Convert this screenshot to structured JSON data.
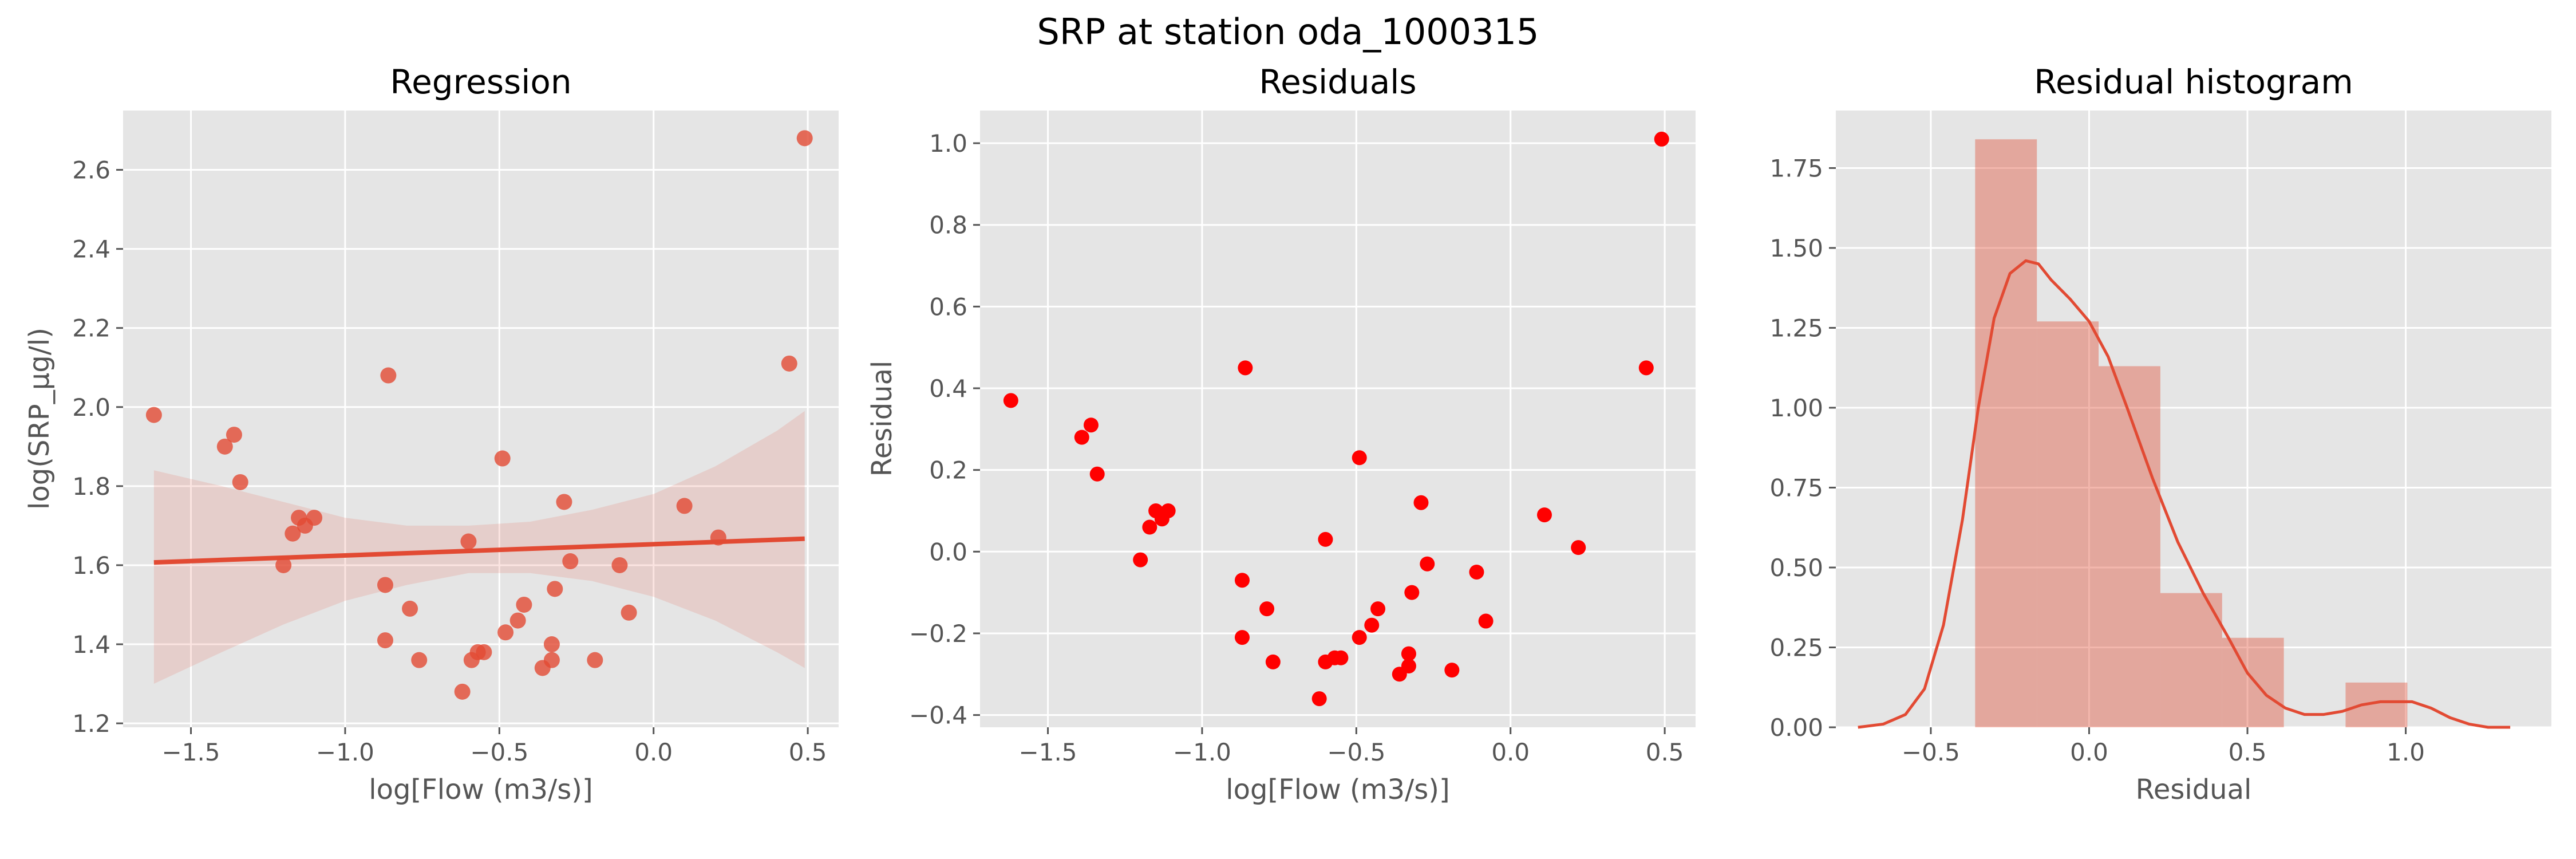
{
  "suptitle": "SRP at station oda_1000315",
  "chart_data": [
    {
      "type": "scatter",
      "title": "Regression",
      "xlabel": "log[Flow (m3/s)]",
      "ylabel": "log(SRP_µg/l)",
      "xlim": [
        -1.72,
        0.6
      ],
      "ylim": [
        1.19,
        2.75
      ],
      "xticks": [
        -1.5,
        -1.0,
        -0.5,
        0.0,
        0.5
      ],
      "xtick_labels": [
        "−1.5",
        "−1.0",
        "−0.5",
        "0.0",
        "0.5"
      ],
      "yticks": [
        1.2,
        1.4,
        1.6,
        1.8,
        2.0,
        2.2,
        2.4,
        2.6
      ],
      "ytick_labels": [
        "1.2",
        "1.4",
        "1.6",
        "1.8",
        "2.0",
        "2.2",
        "2.4",
        "2.6"
      ],
      "grid": true,
      "point_color": "#E24A33",
      "points": [
        {
          "x": -1.62,
          "y": 1.98
        },
        {
          "x": -1.39,
          "y": 1.9
        },
        {
          "x": -1.36,
          "y": 1.93
        },
        {
          "x": -1.34,
          "y": 1.81
        },
        {
          "x": -1.2,
          "y": 1.6
        },
        {
          "x": -1.17,
          "y": 1.68
        },
        {
          "x": -1.15,
          "y": 1.72
        },
        {
          "x": -1.13,
          "y": 1.7
        },
        {
          "x": -1.1,
          "y": 1.72
        },
        {
          "x": -0.87,
          "y": 1.55
        },
        {
          "x": -0.86,
          "y": 2.08
        },
        {
          "x": -0.87,
          "y": 1.41
        },
        {
          "x": -0.79,
          "y": 1.49
        },
        {
          "x": -0.76,
          "y": 1.36
        },
        {
          "x": -0.62,
          "y": 1.28
        },
        {
          "x": -0.6,
          "y": 1.66
        },
        {
          "x": -0.59,
          "y": 1.36
        },
        {
          "x": -0.57,
          "y": 1.38
        },
        {
          "x": -0.55,
          "y": 1.38
        },
        {
          "x": -0.49,
          "y": 1.87
        },
        {
          "x": -0.48,
          "y": 1.43
        },
        {
          "x": -0.44,
          "y": 1.46
        },
        {
          "x": -0.42,
          "y": 1.5
        },
        {
          "x": -0.36,
          "y": 1.34
        },
        {
          "x": -0.33,
          "y": 1.36
        },
        {
          "x": -0.33,
          "y": 1.4
        },
        {
          "x": -0.32,
          "y": 1.54
        },
        {
          "x": -0.29,
          "y": 1.76
        },
        {
          "x": -0.27,
          "y": 1.61
        },
        {
          "x": -0.19,
          "y": 1.36
        },
        {
          "x": -0.11,
          "y": 1.6
        },
        {
          "x": -0.08,
          "y": 1.48
        },
        {
          "x": 0.1,
          "y": 1.75
        },
        {
          "x": 0.21,
          "y": 1.67
        },
        {
          "x": 0.44,
          "y": 2.11
        },
        {
          "x": 0.49,
          "y": 2.68
        }
      ],
      "fit_line": {
        "x": [
          -1.62,
          0.49
        ],
        "y": [
          1.607,
          1.667
        ],
        "color": "#E24A33"
      },
      "confidence_band": {
        "x": [
          -1.62,
          -1.4,
          -1.2,
          -1.0,
          -0.8,
          -0.6,
          -0.4,
          -0.2,
          0.0,
          0.2,
          0.4,
          0.49
        ],
        "upper": [
          1.84,
          1.8,
          1.76,
          1.72,
          1.7,
          1.7,
          1.71,
          1.74,
          1.78,
          1.85,
          1.94,
          1.99
        ],
        "lower": [
          1.3,
          1.38,
          1.45,
          1.51,
          1.55,
          1.58,
          1.58,
          1.56,
          1.52,
          1.46,
          1.38,
          1.34
        ],
        "color": "#E24A33"
      }
    },
    {
      "type": "scatter",
      "title": "Residuals",
      "xlabel": "log[Flow (m3/s)]",
      "ylabel": "Residual",
      "xlim": [
        -1.72,
        0.6
      ],
      "ylim": [
        -0.43,
        1.08
      ],
      "xticks": [
        -1.5,
        -1.0,
        -0.5,
        0.0,
        0.5
      ],
      "xtick_labels": [
        "−1.5",
        "−1.0",
        "−0.5",
        "0.0",
        "0.5"
      ],
      "yticks": [
        -0.4,
        -0.2,
        0.0,
        0.2,
        0.4,
        0.6,
        0.8,
        1.0
      ],
      "ytick_labels": [
        "−0.4",
        "−0.2",
        "0.0",
        "0.2",
        "0.4",
        "0.6",
        "0.8",
        "1.0"
      ],
      "grid": true,
      "point_color": "#FF0000",
      "points": [
        {
          "x": -1.62,
          "y": 0.37
        },
        {
          "x": -1.39,
          "y": 0.28
        },
        {
          "x": -1.36,
          "y": 0.31
        },
        {
          "x": -1.34,
          "y": 0.19
        },
        {
          "x": -1.2,
          "y": -0.02
        },
        {
          "x": -1.17,
          "y": 0.06
        },
        {
          "x": -1.15,
          "y": 0.1
        },
        {
          "x": -1.13,
          "y": 0.08
        },
        {
          "x": -1.11,
          "y": 0.1
        },
        {
          "x": -0.87,
          "y": -0.07
        },
        {
          "x": -0.86,
          "y": 0.45
        },
        {
          "x": -0.87,
          "y": -0.21
        },
        {
          "x": -0.79,
          "y": -0.14
        },
        {
          "x": -0.77,
          "y": -0.27
        },
        {
          "x": -0.62,
          "y": -0.36
        },
        {
          "x": -0.6,
          "y": 0.03
        },
        {
          "x": -0.6,
          "y": -0.27
        },
        {
          "x": -0.57,
          "y": -0.26
        },
        {
          "x": -0.55,
          "y": -0.26
        },
        {
          "x": -0.49,
          "y": 0.23
        },
        {
          "x": -0.49,
          "y": -0.21
        },
        {
          "x": -0.45,
          "y": -0.18
        },
        {
          "x": -0.43,
          "y": -0.14
        },
        {
          "x": -0.36,
          "y": -0.3
        },
        {
          "x": -0.33,
          "y": -0.28
        },
        {
          "x": -0.33,
          "y": -0.25
        },
        {
          "x": -0.32,
          "y": -0.1
        },
        {
          "x": -0.29,
          "y": 0.12
        },
        {
          "x": -0.27,
          "y": -0.03
        },
        {
          "x": -0.19,
          "y": -0.29
        },
        {
          "x": -0.11,
          "y": -0.05
        },
        {
          "x": -0.08,
          "y": -0.17
        },
        {
          "x": 0.11,
          "y": 0.09
        },
        {
          "x": 0.22,
          "y": 0.01
        },
        {
          "x": 0.44,
          "y": 0.45
        },
        {
          "x": 0.49,
          "y": 1.01
        }
      ]
    },
    {
      "type": "histogram",
      "title": "Residual histogram",
      "xlabel": "Residual",
      "ylabel": "",
      "xlim": [
        -0.8,
        1.46
      ],
      "ylim": [
        0,
        1.93
      ],
      "xticks": [
        -0.5,
        0.0,
        0.5,
        1.0
      ],
      "xtick_labels": [
        "−0.5",
        "0.0",
        "0.5",
        "1.0"
      ],
      "yticks": [
        0.0,
        0.25,
        0.5,
        0.75,
        1.0,
        1.25,
        1.5,
        1.75
      ],
      "ytick_labels": [
        "0.00",
        "0.25",
        "0.50",
        "0.75",
        "1.00",
        "1.25",
        "1.50",
        "1.75"
      ],
      "grid": true,
      "bar_color": "#E24A33",
      "bins": [
        {
          "x0": -0.36,
          "x1": -0.165,
          "value": 1.84
        },
        {
          "x0": -0.165,
          "x1": 0.03,
          "value": 1.27
        },
        {
          "x0": 0.03,
          "x1": 0.225,
          "value": 1.13
        },
        {
          "x0": 0.225,
          "x1": 0.42,
          "value": 0.42
        },
        {
          "x0": 0.42,
          "x1": 0.615,
          "value": 0.28
        },
        {
          "x0": 0.615,
          "x1": 0.81,
          "value": 0.0
        },
        {
          "x0": 0.81,
          "x1": 1.005,
          "value": 0.14
        }
      ],
      "kde": {
        "color": "#E24A33",
        "x": [
          -0.73,
          -0.65,
          -0.58,
          -0.52,
          -0.46,
          -0.4,
          -0.35,
          -0.3,
          -0.25,
          -0.2,
          -0.16,
          -0.12,
          -0.06,
          0.0,
          0.06,
          0.12,
          0.2,
          0.28,
          0.36,
          0.44,
          0.5,
          0.56,
          0.62,
          0.68,
          0.74,
          0.8,
          0.86,
          0.92,
          0.98,
          1.02,
          1.08,
          1.14,
          1.2,
          1.26,
          1.33
        ],
        "y": [
          0.0,
          0.01,
          0.04,
          0.12,
          0.32,
          0.65,
          1.0,
          1.28,
          1.42,
          1.46,
          1.45,
          1.4,
          1.34,
          1.27,
          1.16,
          1.0,
          0.78,
          0.58,
          0.42,
          0.28,
          0.17,
          0.1,
          0.06,
          0.04,
          0.04,
          0.05,
          0.07,
          0.08,
          0.08,
          0.08,
          0.06,
          0.03,
          0.01,
          0.0,
          0.0
        ]
      }
    }
  ]
}
